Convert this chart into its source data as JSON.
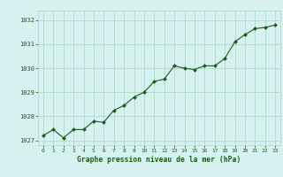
{
  "x": [
    0,
    1,
    2,
    3,
    4,
    5,
    6,
    7,
    8,
    9,
    10,
    11,
    12,
    13,
    14,
    15,
    16,
    17,
    18,
    19,
    20,
    21,
    22,
    23
  ],
  "y": [
    1027.2,
    1027.45,
    1027.1,
    1027.45,
    1027.45,
    1027.8,
    1027.75,
    1028.25,
    1028.45,
    1028.8,
    1029.0,
    1029.45,
    1029.55,
    1030.1,
    1030.0,
    1029.95,
    1030.1,
    1030.1,
    1030.4,
    1031.1,
    1031.4,
    1031.65,
    1031.7,
    1031.8
  ],
  "line_color": "#1a5c1a",
  "marker_color": "#1a5c1a",
  "bg_color": "#d7f0f0",
  "grid_color": "#a8d8c8",
  "xlabel": "Graphe pression niveau de la mer (hPa)",
  "xlabel_color": "#1a5c1a",
  "tick_color": "#1a5c1a",
  "ylim": [
    1026.8,
    1032.4
  ],
  "yticks": [
    1027,
    1028,
    1029,
    1030,
    1031,
    1032
  ],
  "xticks": [
    0,
    1,
    2,
    3,
    4,
    5,
    6,
    7,
    8,
    9,
    10,
    11,
    12,
    13,
    14,
    15,
    16,
    17,
    18,
    19,
    20,
    21,
    22,
    23
  ]
}
